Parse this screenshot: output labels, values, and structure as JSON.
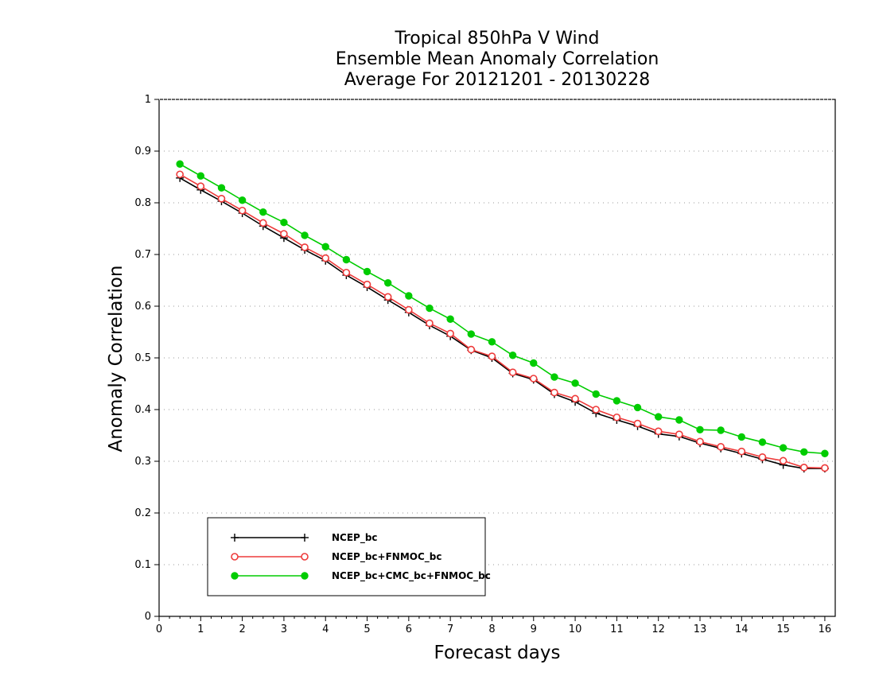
{
  "chart_data": {
    "type": "line",
    "title": [
      "Tropical 850hPa V Wind",
      "Ensemble Mean Anomaly Correlation",
      "Average For 20121201 - 20130228"
    ],
    "xlabel": "Forecast days",
    "ylabel": "Anomaly Correlation",
    "xlim": [
      0,
      16.25
    ],
    "ylim": [
      0,
      1
    ],
    "xticks": [
      "0",
      "1",
      "2",
      "3",
      "4",
      "5",
      "6",
      "7",
      "8",
      "9",
      "10",
      "11",
      "12",
      "13",
      "14",
      "15",
      "16"
    ],
    "yticks": [
      "0",
      "0.1",
      "0.2",
      "0.3",
      "0.4",
      "0.5",
      "0.6",
      "0.7",
      "0.8",
      "0.9",
      "1"
    ],
    "grid": "horizontal-dotted",
    "legend_position": "bottom-left",
    "x": [
      0.5,
      1,
      1.5,
      2,
      2.5,
      3,
      3.5,
      4,
      4.5,
      5,
      5.5,
      6,
      6.5,
      7,
      7.5,
      8,
      8.5,
      9,
      9.5,
      10,
      10.5,
      11,
      11.5,
      12,
      12.5,
      13,
      13.5,
      14,
      14.5,
      15,
      15.5,
      16
    ],
    "series": [
      {
        "name": "NCEP_bc",
        "color": "#000000",
        "marker": "plus",
        "values": [
          0.848,
          0.825,
          0.803,
          0.78,
          0.755,
          0.732,
          0.709,
          0.688,
          0.66,
          0.637,
          0.612,
          0.588,
          0.563,
          0.542,
          0.515,
          0.5,
          0.47,
          0.458,
          0.43,
          0.415,
          0.393,
          0.38,
          0.368,
          0.353,
          0.348,
          0.335,
          0.325,
          0.315,
          0.304,
          0.293,
          0.286,
          0.286
        ]
      },
      {
        "name": "NCEP_bc+FNMOC_bc",
        "color": "#ee3b3b",
        "marker": "open-circle",
        "values": [
          0.855,
          0.832,
          0.808,
          0.785,
          0.761,
          0.74,
          0.714,
          0.693,
          0.665,
          0.642,
          0.618,
          0.593,
          0.567,
          0.547,
          0.516,
          0.503,
          0.472,
          0.46,
          0.433,
          0.421,
          0.4,
          0.385,
          0.373,
          0.358,
          0.352,
          0.338,
          0.328,
          0.319,
          0.308,
          0.301,
          0.288,
          0.287
        ]
      },
      {
        "name": "NCEP_bc+CMC_bc+FNMOC_bc",
        "color": "#00cc00",
        "marker": "filled-circle",
        "values": [
          0.875,
          0.852,
          0.829,
          0.805,
          0.782,
          0.762,
          0.737,
          0.715,
          0.69,
          0.667,
          0.645,
          0.62,
          0.596,
          0.575,
          0.546,
          0.531,
          0.505,
          0.49,
          0.463,
          0.451,
          0.43,
          0.417,
          0.404,
          0.386,
          0.38,
          0.361,
          0.36,
          0.347,
          0.337,
          0.326,
          0.318,
          0.315
        ]
      }
    ]
  }
}
